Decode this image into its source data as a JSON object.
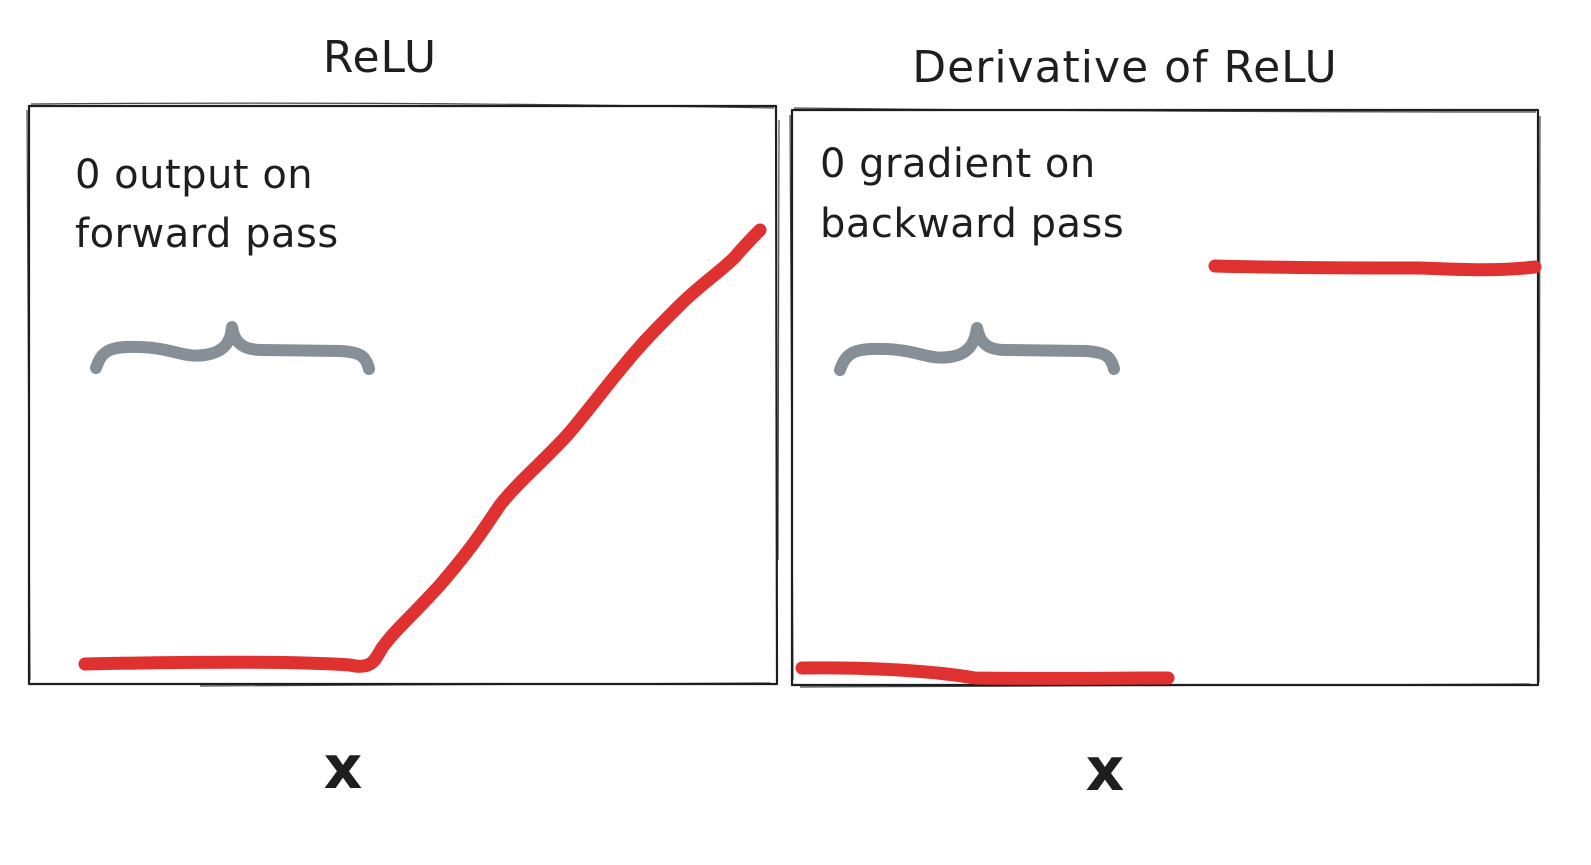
{
  "colors": {
    "ink": "#1e1e1e",
    "curve": "#e03131",
    "brace": "#868e96",
    "background": "#ffffff"
  },
  "panels": [
    {
      "title": "ReLU",
      "annotation_line1": "0 output on",
      "annotation_line2": "forward pass",
      "xlabel": "x",
      "curve_kind": "relu"
    },
    {
      "title": "Derivative of ReLU",
      "annotation_line1": "0 gradient on",
      "annotation_line2": "backward pass",
      "xlabel": "x",
      "curve_kind": "step"
    }
  ]
}
